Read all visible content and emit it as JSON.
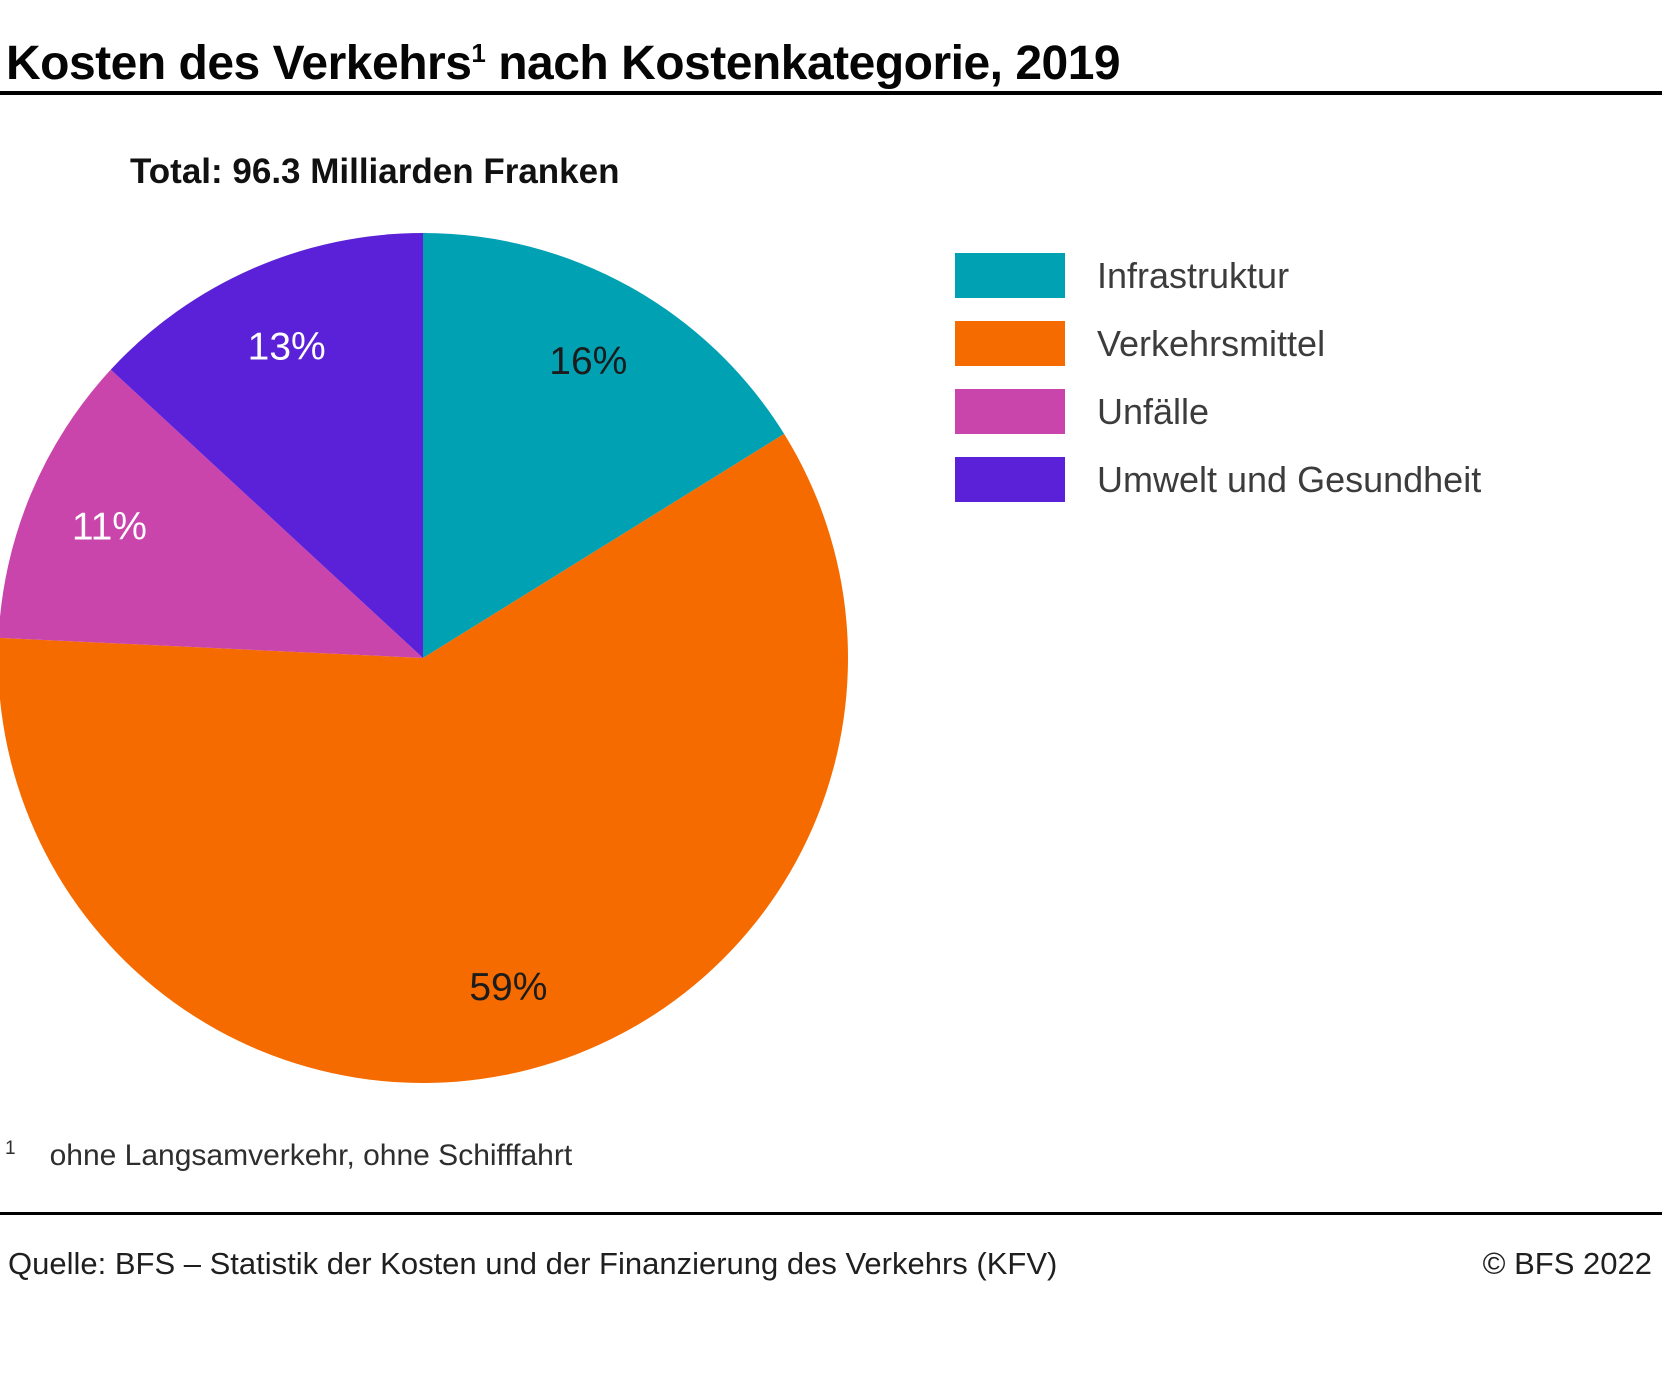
{
  "header": {
    "title_main": "Kosten des Verkehrs",
    "title_superscript": "1",
    "title_rest": " nach Kostenkategorie, 2019"
  },
  "footnote": {
    "marker": "1",
    "text": "ohne Langsamverkehr, ohne Schifffahrt"
  },
  "footer": {
    "source": "Quelle: BFS – Statistik der Kosten und der Finanzierung des Verkehrs (KFV)",
    "copyright": "© BFS 2022"
  },
  "chart_data": {
    "type": "pie",
    "title": "Kosten des Verkehrs nach Kostenkategorie, 2019",
    "total_label": "Total: 96.3 Milliarden Franken",
    "total_value": 96.3,
    "total_unit": "Milliarden Franken",
    "start_angle_deg": 0,
    "direction": "clockwise",
    "legend_position": "right",
    "slices": [
      {
        "label": "Infrastruktur",
        "value_pct": 16,
        "color": "#00a1b3",
        "label_color": "#1c1c1c"
      },
      {
        "label": "Verkehrsmittel",
        "value_pct": 59,
        "color": "#f56b00",
        "label_color": "#1c1c1c"
      },
      {
        "label": "Unfälle",
        "value_pct": 11,
        "color": "#c944ab",
        "label_color": "#ffffff"
      },
      {
        "label": "Umwelt und Gesundheit",
        "value_pct": 13,
        "color": "#5b21d8",
        "label_color": "#ffffff"
      }
    ]
  }
}
